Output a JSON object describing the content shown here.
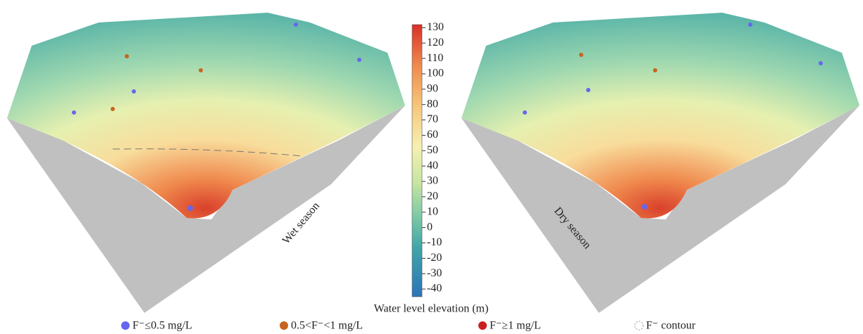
{
  "colorbar": {
    "label": "Water level elevation (m)",
    "lim": [
      -45,
      132
    ],
    "ticks": [
      130,
      120,
      110,
      100,
      90,
      80,
      70,
      60,
      50,
      40,
      30,
      20,
      10,
      0,
      -10,
      -20,
      -30,
      -40
    ]
  },
  "panels": [
    {
      "label": "Wet season"
    },
    {
      "label": "Dry season"
    }
  ],
  "legend": [
    {
      "label": "F⁻≤0.5 mg/L",
      "color": "#6666ee"
    },
    {
      "label": "0.5<F⁻<1 mg/L",
      "color": "#c8641e"
    },
    {
      "label": "F⁻≥1 mg/L",
      "color": "#cc1e1e"
    },
    {
      "label": "F⁻ contour",
      "color": "#999999"
    }
  ]
}
